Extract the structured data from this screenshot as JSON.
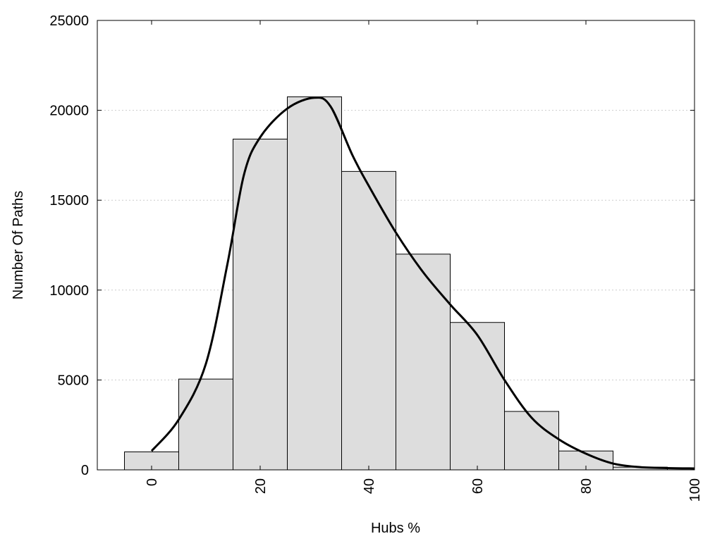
{
  "chart_data": {
    "type": "bar",
    "title": "",
    "xlabel": "Hubs %",
    "ylabel": "Number Of Paths",
    "xlim": [
      -10,
      100
    ],
    "ylim": [
      0,
      25000
    ],
    "x_ticks": [
      0,
      20,
      40,
      60,
      80,
      100
    ],
    "y_ticks": [
      0,
      5000,
      10000,
      15000,
      20000,
      25000
    ],
    "bin_width": 10,
    "bins": [
      {
        "x": 0,
        "value": 1000
      },
      {
        "x": 10,
        "value": 5050
      },
      {
        "x": 20,
        "value": 18400
      },
      {
        "x": 30,
        "value": 20750
      },
      {
        "x": 40,
        "value": 16600
      },
      {
        "x": 50,
        "value": 12000
      },
      {
        "x": 60,
        "value": 8200
      },
      {
        "x": 70,
        "value": 3250
      },
      {
        "x": 80,
        "value": 1050
      },
      {
        "x": 90,
        "value": 150
      }
    ],
    "density_curve": {
      "x": [
        0,
        5,
        10,
        14,
        17,
        20,
        25,
        30,
        33,
        37,
        40,
        45,
        50,
        55,
        60,
        65,
        70,
        75,
        80,
        85,
        90,
        95,
        100
      ],
      "y": [
        1050,
        2800,
        5900,
        11500,
        16400,
        18500,
        20100,
        20700,
        20200,
        17500,
        15800,
        13200,
        11000,
        9200,
        7500,
        5000,
        2900,
        1700,
        900,
        350,
        150,
        100,
        80
      ]
    },
    "grid": {
      "y": true,
      "x": false,
      "style": "dotted"
    },
    "legend": "none",
    "colors": {
      "bar_fill": "#dddddd",
      "bar_stroke": "#000000",
      "curve": "#000000",
      "grid": "#cccccc"
    }
  }
}
